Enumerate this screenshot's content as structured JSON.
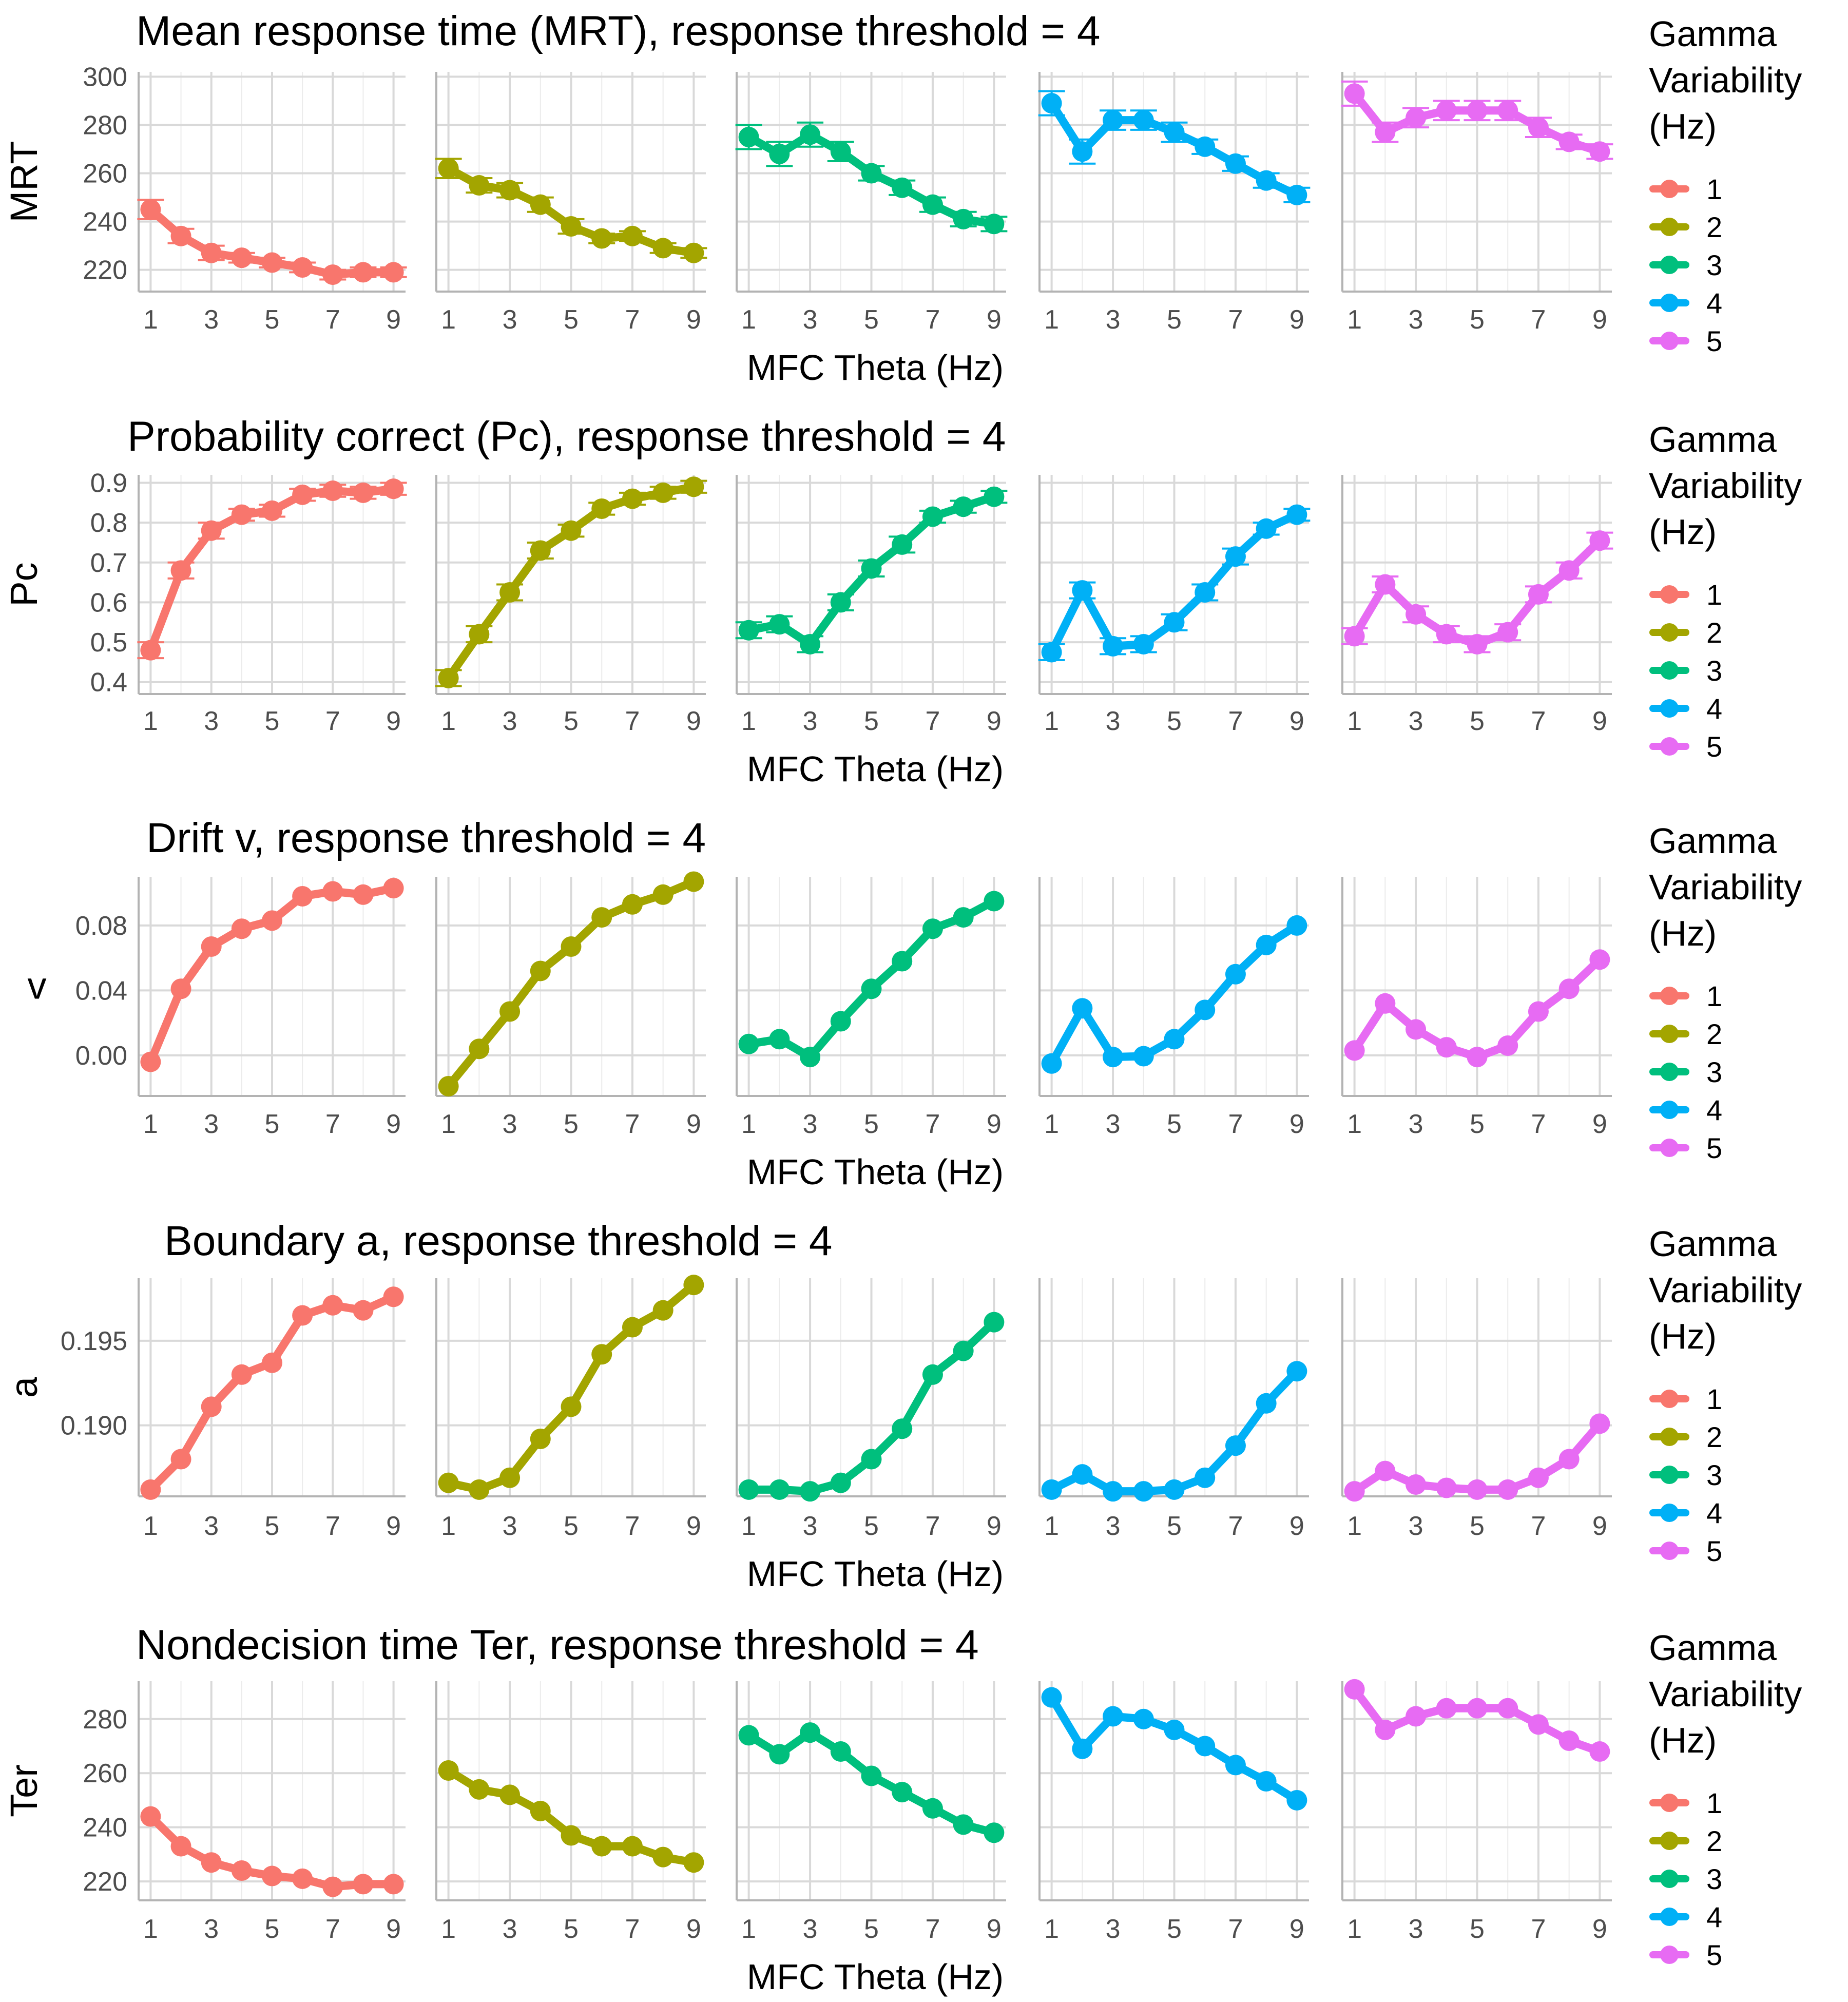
{
  "legend": {
    "title_lines": [
      "Gamma",
      "Variability",
      "(Hz)"
    ],
    "items": [
      {
        "label": "1",
        "color": "#F8766D"
      },
      {
        "label": "2",
        "color": "#A3A500"
      },
      {
        "label": "3",
        "color": "#00BF7D"
      },
      {
        "label": "4",
        "color": "#00B0F6"
      },
      {
        "label": "5",
        "color": "#E76BF3"
      }
    ]
  },
  "chart_data": [
    {
      "type": "line",
      "title": "Mean response time (MRT), response threshold = 4",
      "xlabel": "MFC Theta (Hz)",
      "ylabel": "MRT",
      "x": [
        1,
        2,
        3,
        4,
        5,
        6,
        7,
        8,
        9
      ],
      "xticks": [
        "1",
        "3",
        "5",
        "7",
        "9"
      ],
      "yticks": [
        "220",
        "240",
        "260",
        "280",
        "300"
      ],
      "ylim": [
        211,
        302
      ],
      "error_bars": true,
      "series": [
        {
          "name": "1",
          "values": [
            245,
            234,
            227,
            225,
            223,
            221,
            218,
            219,
            219
          ],
          "err": [
            4,
            3,
            3,
            2,
            2,
            2,
            2,
            2,
            2
          ]
        },
        {
          "name": "2",
          "values": [
            262,
            255,
            253,
            247,
            238,
            233,
            234,
            229,
            227
          ],
          "err": [
            4,
            3,
            3,
            3,
            3,
            2,
            2,
            2,
            2
          ]
        },
        {
          "name": "3",
          "values": [
            275,
            268,
            276,
            269,
            260,
            254,
            247,
            241,
            239
          ],
          "err": [
            5,
            5,
            5,
            4,
            3,
            3,
            3,
            3,
            3
          ]
        },
        {
          "name": "4",
          "values": [
            289,
            269,
            282,
            282,
            277,
            271,
            264,
            257,
            251
          ],
          "err": [
            5,
            5,
            4,
            4,
            4,
            3,
            3,
            3,
            3
          ]
        },
        {
          "name": "5",
          "values": [
            293,
            277,
            283,
            286,
            286,
            286,
            279,
            273,
            269
          ],
          "err": [
            5,
            4,
            4,
            4,
            4,
            4,
            4,
            3,
            3
          ]
        }
      ]
    },
    {
      "type": "line",
      "title": "Probability correct (Pc), response threshold = 4",
      "xlabel": "MFC Theta (Hz)",
      "ylabel": "Pc",
      "x": [
        1,
        2,
        3,
        4,
        5,
        6,
        7,
        8,
        9
      ],
      "xticks": [
        "1",
        "3",
        "5",
        "7",
        "9"
      ],
      "yticks": [
        "0.4",
        "0.5",
        "0.6",
        "0.7",
        "0.8",
        "0.9"
      ],
      "ylim": [
        0.37,
        0.92
      ],
      "error_bars": true,
      "series": [
        {
          "name": "1",
          "values": [
            0.48,
            0.68,
            0.78,
            0.82,
            0.83,
            0.87,
            0.88,
            0.875,
            0.885
          ],
          "err": [
            0.02,
            0.02,
            0.02,
            0.015,
            0.015,
            0.015,
            0.015,
            0.015,
            0.015
          ]
        },
        {
          "name": "2",
          "values": [
            0.41,
            0.52,
            0.625,
            0.73,
            0.78,
            0.835,
            0.86,
            0.875,
            0.89
          ],
          "err": [
            0.02,
            0.02,
            0.02,
            0.02,
            0.015,
            0.015,
            0.015,
            0.015,
            0.015
          ]
        },
        {
          "name": "3",
          "values": [
            0.53,
            0.545,
            0.495,
            0.6,
            0.685,
            0.745,
            0.815,
            0.84,
            0.865
          ],
          "err": [
            0.02,
            0.02,
            0.02,
            0.02,
            0.02,
            0.02,
            0.015,
            0.015,
            0.015
          ]
        },
        {
          "name": "4",
          "values": [
            0.475,
            0.63,
            0.49,
            0.495,
            0.55,
            0.625,
            0.715,
            0.785,
            0.82
          ],
          "err": [
            0.02,
            0.02,
            0.02,
            0.02,
            0.02,
            0.02,
            0.02,
            0.015,
            0.015
          ]
        },
        {
          "name": "5",
          "values": [
            0.515,
            0.645,
            0.57,
            0.52,
            0.495,
            0.525,
            0.62,
            0.68,
            0.755
          ],
          "err": [
            0.02,
            0.02,
            0.02,
            0.02,
            0.02,
            0.02,
            0.02,
            0.02,
            0.02
          ]
        }
      ]
    },
    {
      "type": "line",
      "title": "Drift v, response threshold = 4",
      "xlabel": "MFC Theta (Hz)",
      "ylabel": "v",
      "x": [
        1,
        2,
        3,
        4,
        5,
        6,
        7,
        8,
        9
      ],
      "xticks": [
        "1",
        "3",
        "5",
        "7",
        "9"
      ],
      "yticks": [
        "0.00",
        "0.04",
        "0.08"
      ],
      "ylim": [
        -0.025,
        0.11
      ],
      "error_bars": false,
      "series": [
        {
          "name": "1",
          "values": [
            -0.004,
            0.041,
            0.067,
            0.078,
            0.083,
            0.098,
            0.101,
            0.099,
            0.103
          ]
        },
        {
          "name": "2",
          "values": [
            -0.019,
            0.004,
            0.027,
            0.052,
            0.067,
            0.085,
            0.093,
            0.099,
            0.107
          ]
        },
        {
          "name": "3",
          "values": [
            0.007,
            0.01,
            -0.001,
            0.021,
            0.041,
            0.058,
            0.078,
            0.085,
            0.095
          ]
        },
        {
          "name": "4",
          "values": [
            -0.005,
            0.029,
            -0.001,
            -0.0005,
            0.01,
            0.028,
            0.05,
            0.068,
            0.08
          ]
        },
        {
          "name": "5",
          "values": [
            0.003,
            0.032,
            0.016,
            0.005,
            -0.001,
            0.006,
            0.027,
            0.041,
            0.059
          ]
        }
      ]
    },
    {
      "type": "line",
      "title": "Boundary a, response threshold = 4",
      "xlabel": "MFC Theta (Hz)",
      "ylabel": "a",
      "x": [
        1,
        2,
        3,
        4,
        5,
        6,
        7,
        8,
        9
      ],
      "xticks": [
        "1",
        "3",
        "5",
        "7",
        "9"
      ],
      "yticks": [
        "0.190",
        "0.195"
      ],
      "ylim": [
        0.1858,
        0.1987
      ],
      "error_bars": false,
      "series": [
        {
          "name": "1",
          "values": [
            0.1862,
            0.188,
            0.1911,
            0.193,
            0.1937,
            0.1965,
            0.1971,
            0.1968,
            0.1976
          ]
        },
        {
          "name": "2",
          "values": [
            0.1866,
            0.1862,
            0.1869,
            0.1892,
            0.1911,
            0.1942,
            0.1958,
            0.1968,
            0.1983
          ]
        },
        {
          "name": "3",
          "values": [
            0.1862,
            0.1862,
            0.1861,
            0.1866,
            0.188,
            0.1898,
            0.193,
            0.1944,
            0.1961
          ]
        },
        {
          "name": "4",
          "values": [
            0.1862,
            0.1871,
            0.1861,
            0.1861,
            0.1862,
            0.1869,
            0.1888,
            0.1913,
            0.1932
          ]
        },
        {
          "name": "5",
          "values": [
            0.1861,
            0.1873,
            0.1865,
            0.1863,
            0.1862,
            0.1862,
            0.1869,
            0.188,
            0.1901
          ]
        }
      ]
    },
    {
      "type": "line",
      "title": "Nondecision time Ter, response threshold = 4",
      "xlabel": "MFC Theta (Hz)",
      "ylabel": "Ter",
      "x": [
        1,
        2,
        3,
        4,
        5,
        6,
        7,
        8,
        9
      ],
      "xticks": [
        "1",
        "3",
        "5",
        "7",
        "9"
      ],
      "yticks": [
        "220",
        "240",
        "260",
        "280"
      ],
      "ylim": [
        213,
        294
      ],
      "error_bars": false,
      "series": [
        {
          "name": "1",
          "values": [
            244,
            233,
            227,
            224,
            222,
            221,
            218,
            219,
            219
          ]
        },
        {
          "name": "2",
          "values": [
            261,
            254,
            252,
            246,
            237,
            233,
            233,
            229,
            227
          ]
        },
        {
          "name": "3",
          "values": [
            274,
            267,
            275,
            268,
            259,
            253,
            247,
            241,
            238
          ]
        },
        {
          "name": "4",
          "values": [
            288,
            269,
            281,
            280,
            276,
            270,
            263,
            257,
            250
          ]
        },
        {
          "name": "5",
          "values": [
            291,
            276,
            281,
            284,
            284,
            284,
            278,
            272,
            268
          ]
        }
      ]
    }
  ]
}
